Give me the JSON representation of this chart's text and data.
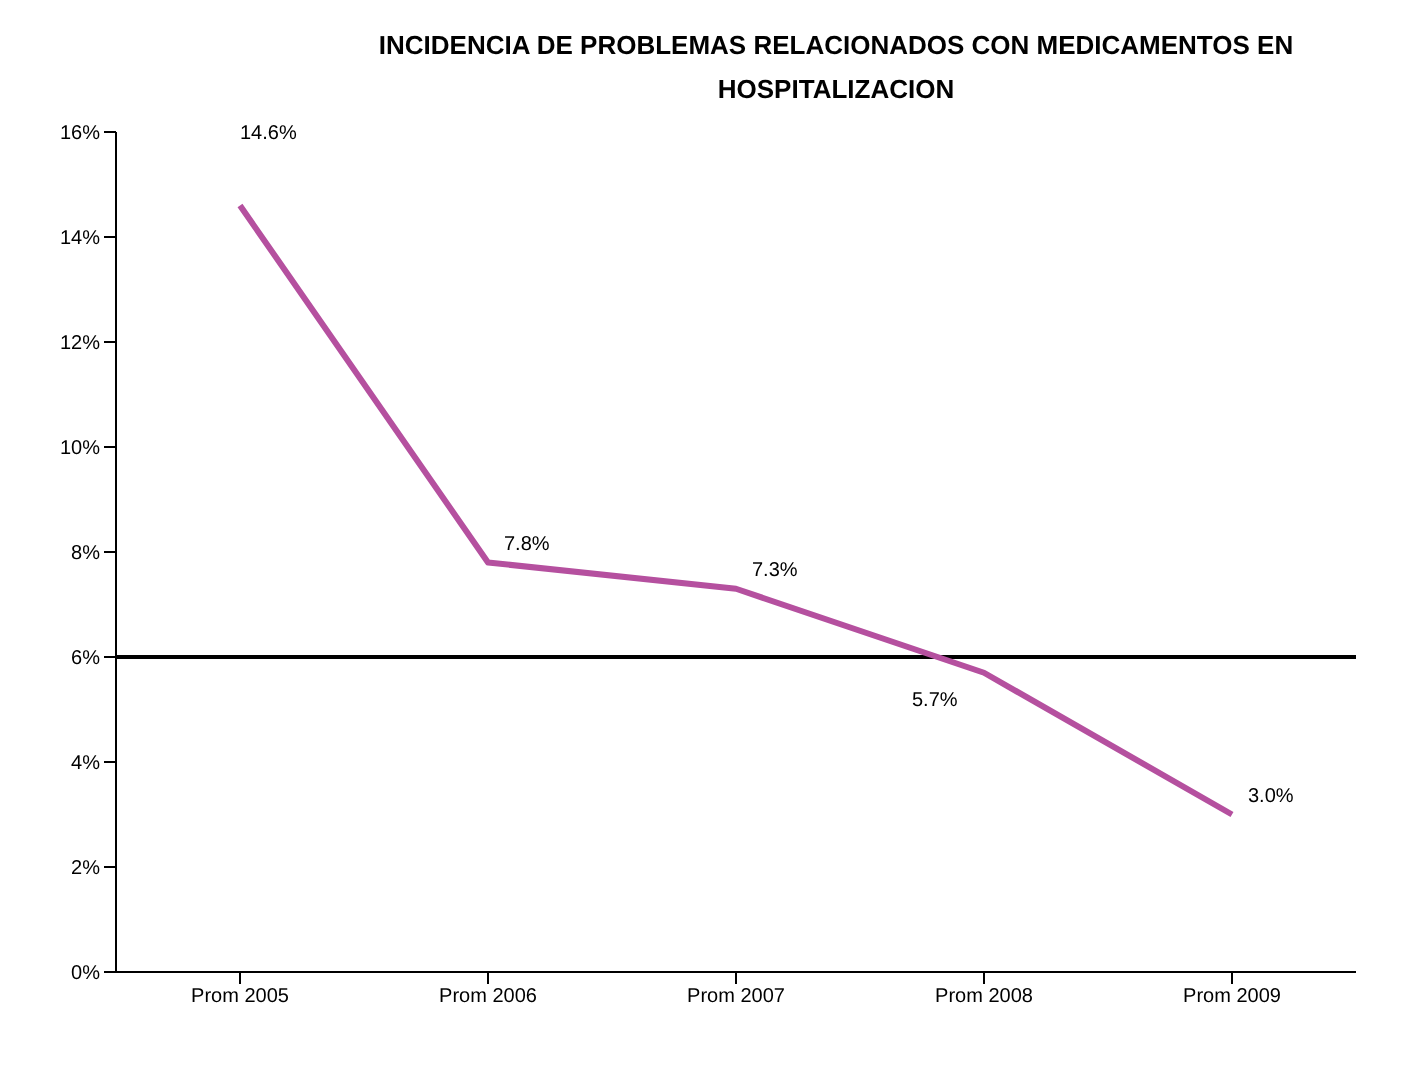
{
  "chart_data": {
    "type": "line",
    "title": "INCIDENCIA DE PROBLEMAS RELACIONADOS CON MEDICAMENTOS EN HOSPITALIZACION",
    "categories": [
      "Prom 2005",
      "Prom 2006",
      "Prom 2007",
      "Prom 2008",
      "Prom 2009"
    ],
    "series": [
      {
        "color": "#b5509f",
        "values": [
          14.6,
          7.8,
          7.3,
          5.7,
          3.0
        ],
        "value_labels": [
          "14.6%",
          "7.8%",
          "7.3%",
          "5.7%",
          "3.0%"
        ]
      }
    ],
    "ylim": [
      0,
      16
    ],
    "yticks": [
      {
        "value": 0,
        "label": "0%"
      },
      {
        "value": 2,
        "label": "2%"
      },
      {
        "value": 4,
        "label": "4%"
      },
      {
        "value": 6,
        "label": "6%"
      },
      {
        "value": 8,
        "label": "8%"
      },
      {
        "value": 10,
        "label": "10%"
      },
      {
        "value": 12,
        "label": "12%"
      },
      {
        "value": 14,
        "label": "14%"
      },
      {
        "value": 16,
        "label": "16%"
      }
    ],
    "ref_lines": [
      {
        "axis": "y",
        "value": 6,
        "color": "#000000"
      }
    ],
    "grid": false,
    "legend": false,
    "marker": "none",
    "line_style": "solid"
  }
}
